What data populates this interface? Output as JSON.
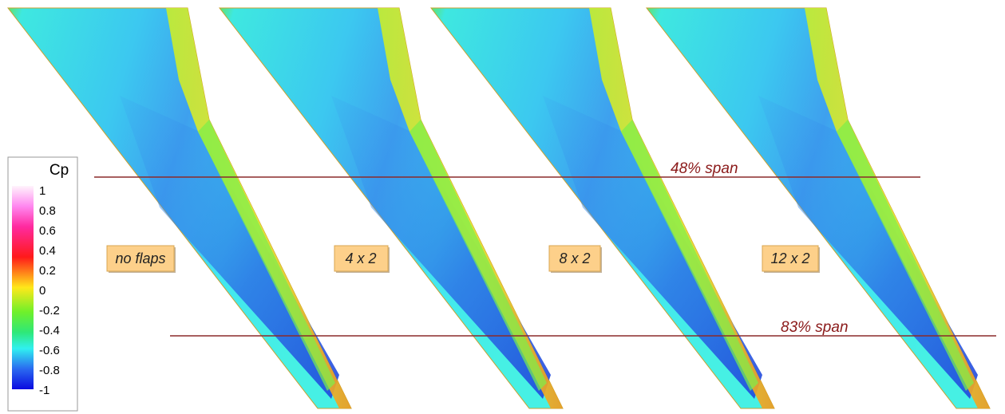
{
  "colorbar": {
    "title": "Cp",
    "ticks": [
      1,
      0.8,
      0.6,
      0.4,
      0.2,
      0,
      -0.2,
      -0.4,
      -0.6,
      -0.8,
      -1
    ]
  },
  "cases": [
    "no flaps",
    "4 x 2",
    "8 x 2",
    "12 x 2"
  ],
  "span_lines": [
    "48% span",
    "83% span"
  ]
}
